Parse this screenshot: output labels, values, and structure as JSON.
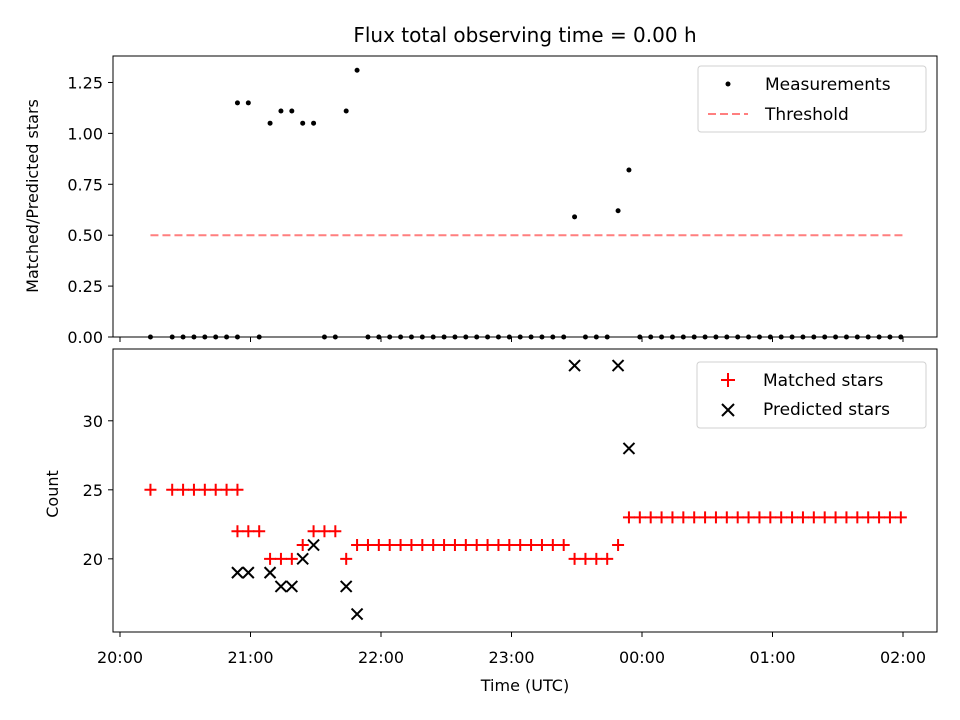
{
  "chart_data": [
    {
      "type": "scatter",
      "title": "Flux total observing time = 0.00 h",
      "ylabel": "Matched/Predicted stars",
      "xlabel": "",
      "ylim": [
        0,
        1.38
      ],
      "xlim": [
        "20:00",
        "02:00"
      ],
      "yticks": [
        "0.00",
        "0.25",
        "0.50",
        "0.75",
        "1.00",
        "1.25"
      ],
      "legend_position": "top-right",
      "legend": {
        "measurements": "Measurements",
        "threshold": "Threshold"
      },
      "colors": {
        "measurements": "#000000",
        "threshold": "#ff7f7f"
      },
      "threshold": {
        "y": 0.5,
        "x_start": "20:14",
        "x_end": "02:00"
      },
      "series": [
        {
          "name": "Measurements",
          "points": [
            [
              "20:14",
              0
            ],
            [
              "20:24",
              0
            ],
            [
              "20:29",
              0
            ],
            [
              "20:34",
              0
            ],
            [
              "20:39",
              0
            ],
            [
              "20:44",
              0
            ],
            [
              "20:49",
              0
            ],
            [
              "20:54",
              0
            ],
            [
              "20:54",
              1.15
            ],
            [
              "20:59",
              1.15
            ],
            [
              "21:04",
              0
            ],
            [
              "21:09",
              1.05
            ],
            [
              "21:14",
              1.11
            ],
            [
              "21:19",
              1.11
            ],
            [
              "21:24",
              1.05
            ],
            [
              "21:29",
              1.05
            ],
            [
              "21:34",
              0
            ],
            [
              "21:39",
              0
            ],
            [
              "21:44",
              1.11
            ],
            [
              "21:49",
              1.31
            ],
            [
              "21:54",
              0
            ],
            [
              "21:59",
              0
            ],
            [
              "22:04",
              0
            ],
            [
              "22:09",
              0
            ],
            [
              "22:14",
              0
            ],
            [
              "22:19",
              0
            ],
            [
              "22:24",
              0
            ],
            [
              "22:29",
              0
            ],
            [
              "22:34",
              0
            ],
            [
              "22:39",
              0
            ],
            [
              "22:44",
              0
            ],
            [
              "22:49",
              0
            ],
            [
              "22:54",
              0
            ],
            [
              "22:59",
              0
            ],
            [
              "23:04",
              0
            ],
            [
              "23:09",
              0
            ],
            [
              "23:14",
              0
            ],
            [
              "23:19",
              0
            ],
            [
              "23:24",
              0
            ],
            [
              "23:29",
              0.59
            ],
            [
              "23:34",
              0
            ],
            [
              "23:39",
              0
            ],
            [
              "23:44",
              0
            ],
            [
              "23:49",
              0.62
            ],
            [
              "23:54",
              0.82
            ],
            [
              "23:59",
              0
            ],
            [
              "00:04",
              0
            ],
            [
              "00:09",
              0
            ],
            [
              "00:14",
              0
            ],
            [
              "00:19",
              0
            ],
            [
              "00:24",
              0
            ],
            [
              "00:29",
              0
            ],
            [
              "00:34",
              0
            ],
            [
              "00:39",
              0
            ],
            [
              "00:44",
              0
            ],
            [
              "00:49",
              0
            ],
            [
              "00:54",
              0
            ],
            [
              "00:59",
              0
            ],
            [
              "01:04",
              0
            ],
            [
              "01:09",
              0
            ],
            [
              "01:14",
              0
            ],
            [
              "01:19",
              0
            ],
            [
              "01:24",
              0
            ],
            [
              "01:29",
              0
            ],
            [
              "01:34",
              0
            ],
            [
              "01:39",
              0
            ],
            [
              "01:44",
              0
            ],
            [
              "01:49",
              0
            ],
            [
              "01:54",
              0
            ],
            [
              "01:59",
              0
            ]
          ]
        }
      ]
    },
    {
      "type": "scatter",
      "title": "",
      "ylabel": "Count",
      "xlabel": "Time (UTC)",
      "ylim": [
        14.7,
        35.2
      ],
      "xlim": [
        "20:00",
        "02:00"
      ],
      "yticks": [
        "20",
        "25",
        "30"
      ],
      "xticks": [
        "20:00",
        "21:00",
        "22:00",
        "23:00",
        "00:00",
        "01:00",
        "02:00"
      ],
      "legend_position": "top-right",
      "legend": {
        "matched": "Matched stars",
        "predicted": "Predicted stars"
      },
      "colors": {
        "matched": "#ff0000",
        "predicted": "#000000"
      },
      "series": [
        {
          "name": "Matched stars",
          "points": [
            [
              "20:14",
              25
            ],
            [
              "20:24",
              25
            ],
            [
              "20:29",
              25
            ],
            [
              "20:34",
              25
            ],
            [
              "20:39",
              25
            ],
            [
              "20:44",
              25
            ],
            [
              "20:49",
              25
            ],
            [
              "20:54",
              25
            ],
            [
              "20:54",
              22
            ],
            [
              "20:59",
              22
            ],
            [
              "21:04",
              22
            ],
            [
              "21:09",
              20
            ],
            [
              "21:14",
              20
            ],
            [
              "21:19",
              20
            ],
            [
              "21:24",
              21
            ],
            [
              "21:29",
              22
            ],
            [
              "21:34",
              22
            ],
            [
              "21:39",
              22
            ],
            [
              "21:44",
              20
            ],
            [
              "21:49",
              21
            ],
            [
              "21:54",
              21
            ],
            [
              "21:59",
              21
            ],
            [
              "22:04",
              21
            ],
            [
              "22:09",
              21
            ],
            [
              "22:14",
              21
            ],
            [
              "22:19",
              21
            ],
            [
              "22:24",
              21
            ],
            [
              "22:29",
              21
            ],
            [
              "22:34",
              21
            ],
            [
              "22:39",
              21
            ],
            [
              "22:44",
              21
            ],
            [
              "22:49",
              21
            ],
            [
              "22:54",
              21
            ],
            [
              "22:59",
              21
            ],
            [
              "23:04",
              21
            ],
            [
              "23:09",
              21
            ],
            [
              "23:14",
              21
            ],
            [
              "23:19",
              21
            ],
            [
              "23:24",
              21
            ],
            [
              "23:29",
              20
            ],
            [
              "23:34",
              20
            ],
            [
              "23:39",
              20
            ],
            [
              "23:44",
              20
            ],
            [
              "23:49",
              21
            ],
            [
              "23:54",
              23
            ],
            [
              "23:59",
              23
            ],
            [
              "00:04",
              23
            ],
            [
              "00:09",
              23
            ],
            [
              "00:14",
              23
            ],
            [
              "00:19",
              23
            ],
            [
              "00:24",
              23
            ],
            [
              "00:29",
              23
            ],
            [
              "00:34",
              23
            ],
            [
              "00:39",
              23
            ],
            [
              "00:44",
              23
            ],
            [
              "00:49",
              23
            ],
            [
              "00:54",
              23
            ],
            [
              "00:59",
              23
            ],
            [
              "01:04",
              23
            ],
            [
              "01:09",
              23
            ],
            [
              "01:14",
              23
            ],
            [
              "01:19",
              23
            ],
            [
              "01:24",
              23
            ],
            [
              "01:29",
              23
            ],
            [
              "01:34",
              23
            ],
            [
              "01:39",
              23
            ],
            [
              "01:44",
              23
            ],
            [
              "01:49",
              23
            ],
            [
              "01:54",
              23
            ],
            [
              "01:59",
              23
            ]
          ]
        },
        {
          "name": "Predicted stars",
          "points": [
            [
              "20:54",
              19
            ],
            [
              "20:59",
              19
            ],
            [
              "21:09",
              19
            ],
            [
              "21:14",
              18
            ],
            [
              "21:19",
              18
            ],
            [
              "21:24",
              20
            ],
            [
              "21:29",
              21
            ],
            [
              "21:44",
              18
            ],
            [
              "21:49",
              16
            ],
            [
              "23:29",
              34
            ],
            [
              "23:49",
              34
            ],
            [
              "23:54",
              28
            ]
          ]
        }
      ]
    }
  ]
}
